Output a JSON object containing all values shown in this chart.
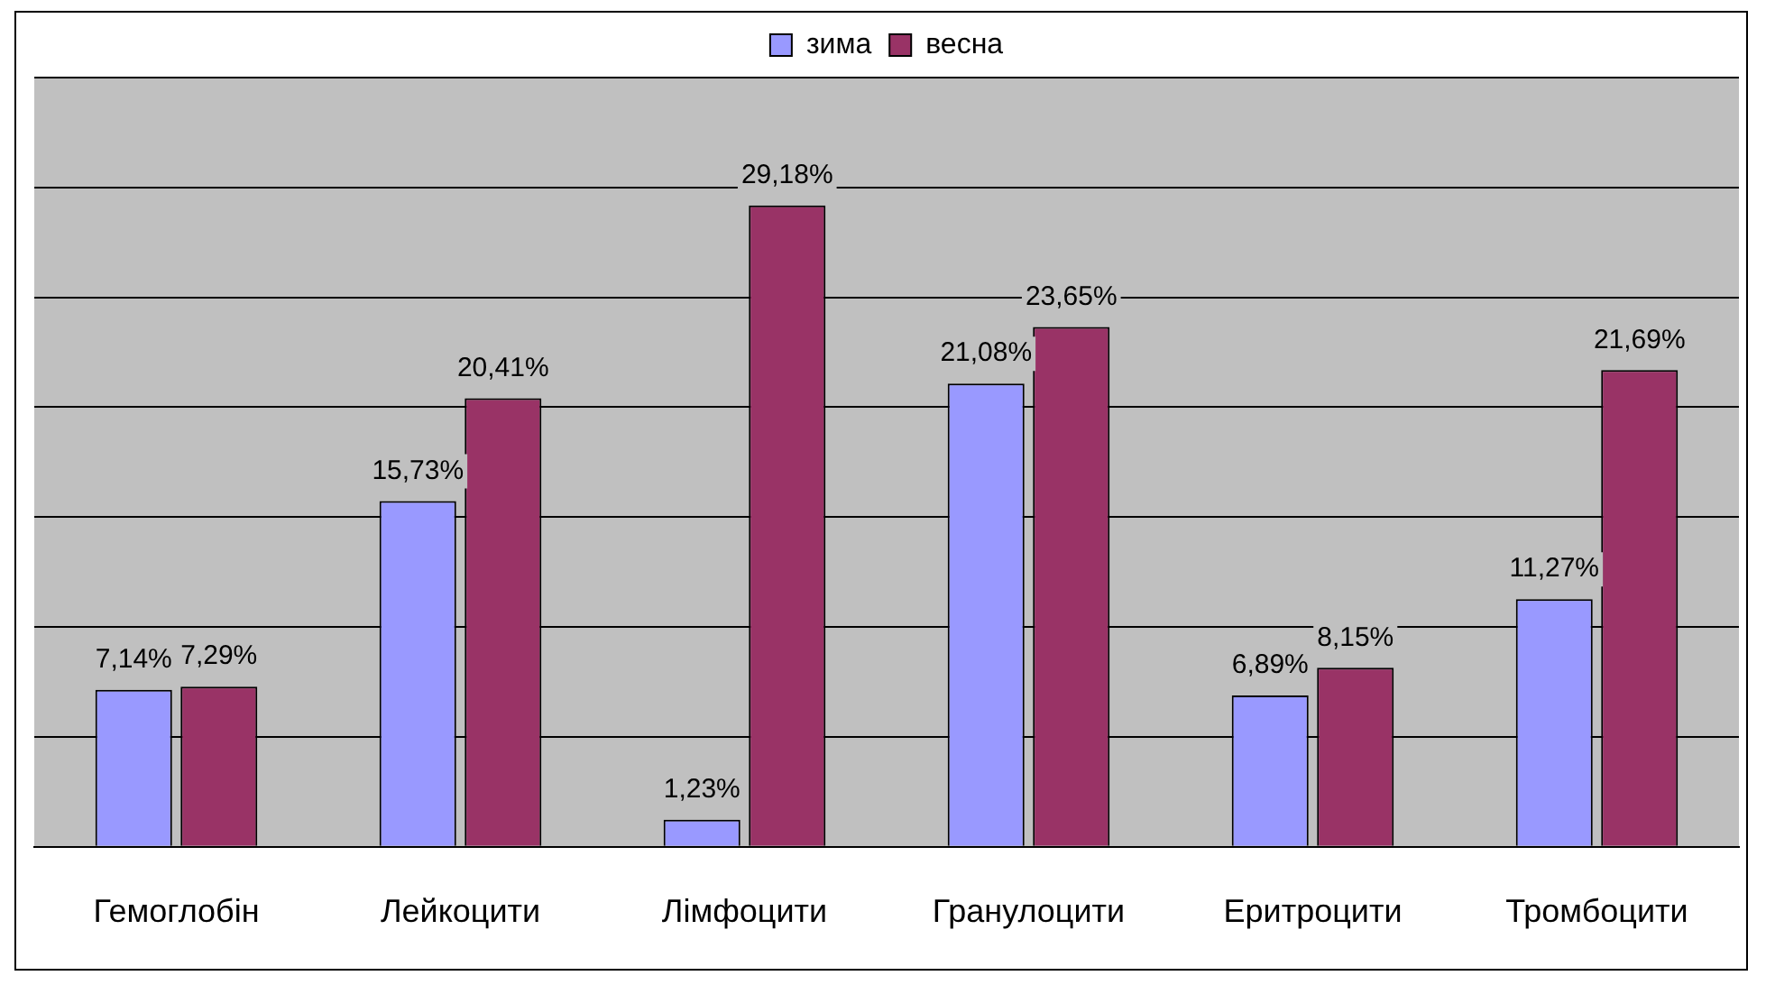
{
  "chart_data": {
    "type": "bar",
    "categories": [
      "Гемоглобін",
      "Лейкоцити",
      "Лімфоцити",
      "Гранулоцити",
      "Еритроцити",
      "Тромбоцити"
    ],
    "series": [
      {
        "name": "зима",
        "color": "#9999ff",
        "values": [
          7.14,
          15.73,
          1.23,
          21.08,
          6.89,
          11.27
        ],
        "value_labels": [
          "7,14%",
          "15,73%",
          "1,23%",
          "21,08%",
          "6,89%",
          "11,27%"
        ]
      },
      {
        "name": "весна",
        "color": "#993366",
        "values": [
          7.29,
          20.41,
          29.18,
          23.65,
          8.15,
          21.69
        ],
        "value_labels": [
          "7,29%",
          "20,41%",
          "29,18%",
          "23,65%",
          "8,15%",
          "21,69%"
        ]
      }
    ],
    "ylim": [
      0,
      35
    ],
    "tick_labels": "x",
    "grid": "y",
    "legend": "top"
  }
}
